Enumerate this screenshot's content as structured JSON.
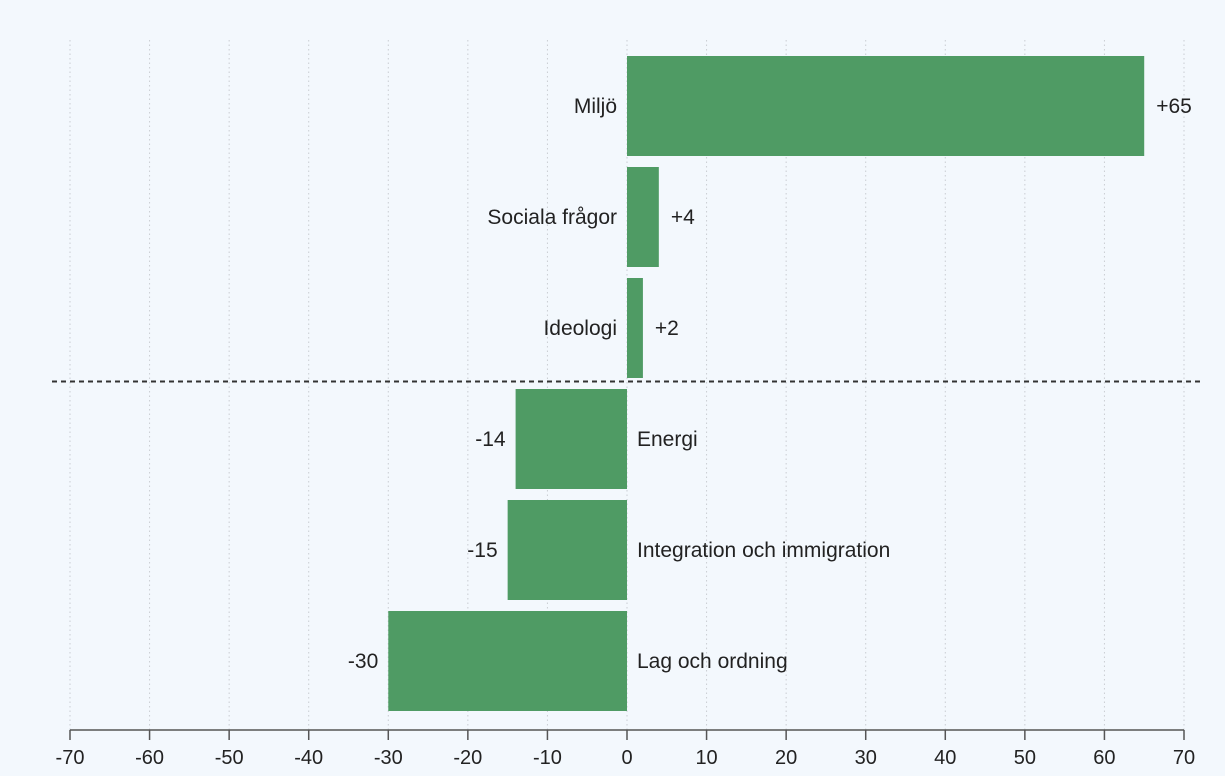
{
  "chart_data": {
    "type": "bar",
    "orientation": "horizontal",
    "title": "",
    "xlabel": "",
    "ylabel": "",
    "xlim": [
      -70,
      70
    ],
    "x_ticks": [
      -70,
      -60,
      -50,
      -40,
      -30,
      -20,
      -10,
      0,
      10,
      20,
      30,
      40,
      50,
      60,
      70
    ],
    "grid": "vertical dotted",
    "categories": [
      "Miljö",
      "Sociala frågor",
      "Ideologi",
      "Energi",
      "Integration och immigration",
      "Lag och ordning"
    ],
    "values": [
      65,
      4,
      2,
      -14,
      -15,
      -30
    ],
    "data_labels": [
      "+65",
      "+4",
      "+2",
      "-14",
      "-15",
      "-30"
    ],
    "separator_after_index": 2,
    "colors": {
      "bar": "#4f9b64",
      "background": "#f3f8fd",
      "grid": "#c9cdd2",
      "separator": "#333333",
      "axis": "#555555"
    }
  }
}
